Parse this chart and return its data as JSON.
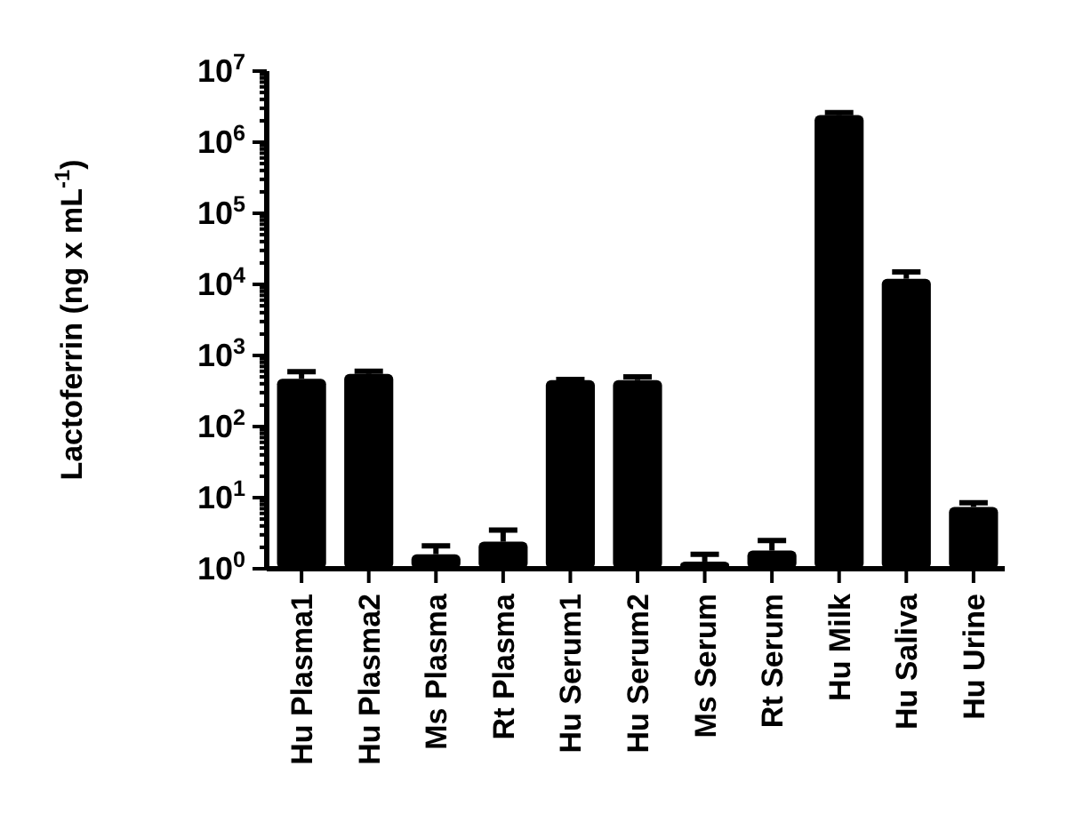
{
  "chart_data": {
    "type": "bar",
    "ylabel": "Lactoferrin (ng x mL$^{-1}$)",
    "categories": [
      "Hu Plasma1",
      "Hu Plasma2",
      "Ms Plasma",
      "Rt Plasma",
      "Hu Serum1",
      "Hu Serum2",
      "Ms Serum",
      "Rt Serum",
      "Hu Milk",
      "Hu Saliva",
      "Hu Urine"
    ],
    "values": [
      470,
      550,
      1.6,
      2.4,
      450,
      450,
      1.26,
      1.8,
      2400000,
      12000,
      7.4
    ],
    "errors": [
      [
        470,
        590
      ],
      [
        550,
        600
      ],
      [
        1.6,
        2.1
      ],
      [
        2.4,
        3.5
      ],
      [
        450,
        460
      ],
      [
        450,
        500
      ],
      [
        1.26,
        1.6
      ],
      [
        1.8,
        2.5
      ],
      [
        2400000,
        2600000
      ],
      [
        12000,
        15000
      ],
      [
        7.4,
        8.5
      ]
    ],
    "color": "#000000",
    "log": true,
    "ylim": [
      1,
      10000000
    ],
    "yticks": [
      {
        "value": 1,
        "label": "10$^{0}$"
      },
      {
        "value": 2,
        "label": null
      },
      {
        "value": 3,
        "label": null
      },
      {
        "value": 4,
        "label": null
      },
      {
        "value": 5,
        "label": null
      },
      {
        "value": 6,
        "label": null
      },
      {
        "value": 7,
        "label": null
      },
      {
        "value": 8,
        "label": null
      },
      {
        "value": 9,
        "label": null
      },
      {
        "value": 10,
        "label": "10$^{1}$"
      },
      {
        "value": 20,
        "label": null
      },
      {
        "value": 30,
        "label": null
      },
      {
        "value": 40,
        "label": null
      },
      {
        "value": 50,
        "label": null
      },
      {
        "value": 60,
        "label": null
      },
      {
        "value": 70,
        "label": null
      },
      {
        "value": 80,
        "label": null
      },
      {
        "value": 90,
        "label": null
      },
      {
        "value": 100,
        "label": "10$^{2}$"
      },
      {
        "value": 200,
        "label": null
      },
      {
        "value": 300,
        "label": null
      },
      {
        "value": 400,
        "label": null
      },
      {
        "value": 500,
        "label": null
      },
      {
        "value": 600,
        "label": null
      },
      {
        "value": 700,
        "label": null
      },
      {
        "value": 800,
        "label": null
      },
      {
        "value": 900,
        "label": null
      },
      {
        "value": 1000,
        "label": "10$^{3}$"
      },
      {
        "value": 2000,
        "label": null
      },
      {
        "value": 3000,
        "label": null
      },
      {
        "value": 4000,
        "label": null
      },
      {
        "value": 5000,
        "label": null
      },
      {
        "value": 6000,
        "label": null
      },
      {
        "value": 7000,
        "label": null
      },
      {
        "value": 8000,
        "label": null
      },
      {
        "value": 9000,
        "label": null
      },
      {
        "value": 10000,
        "label": "10$^{4}$"
      },
      {
        "value": 20000,
        "label": null
      },
      {
        "value": 30000,
        "label": null
      },
      {
        "value": 40000,
        "label": null
      },
      {
        "value": 50000,
        "label": null
      },
      {
        "value": 60000,
        "label": null
      },
      {
        "value": 70000,
        "label": null
      },
      {
        "value": 80000,
        "label": null
      },
      {
        "value": 90000,
        "label": null
      },
      {
        "value": 100000,
        "label": "10$^{5}$"
      },
      {
        "value": 200000,
        "label": null
      },
      {
        "value": 300000,
        "label": null
      },
      {
        "value": 400000,
        "label": null
      },
      {
        "value": 500000,
        "label": null
      },
      {
        "value": 600000,
        "label": null
      },
      {
        "value": 700000,
        "label": null
      },
      {
        "value": 800000,
        "label": null
      },
      {
        "value": 900000,
        "label": null
      },
      {
        "value": 1000000,
        "label": "10$^{6}$"
      },
      {
        "value": 2000000,
        "label": null
      },
      {
        "value": 3000000,
        "label": null
      },
      {
        "value": 4000000,
        "label": null
      },
      {
        "value": 5000000,
        "label": null
      },
      {
        "value": 6000000,
        "label": null
      },
      {
        "value": 7000000,
        "label": null
      },
      {
        "value": 8000000,
        "label": null
      },
      {
        "value": 9000000,
        "label": null
      },
      {
        "value": 10000000,
        "label": "10$^{7}$"
      }
    ],
    "grid": false
  }
}
